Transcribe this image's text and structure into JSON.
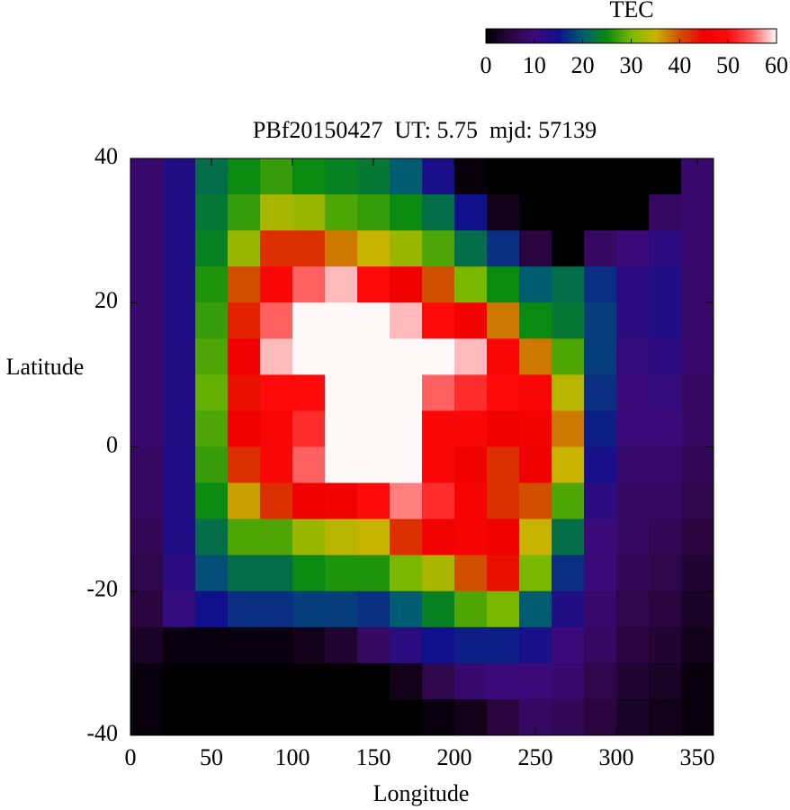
{
  "chart_data": {
    "type": "heatmap",
    "title": "PBf20150427  UT: 5.75  mjd: 57139",
    "xlabel": "Longitude",
    "ylabel": "Latitude",
    "xlim": [
      0,
      360
    ],
    "ylim": [
      -40,
      40
    ],
    "xticks": [
      0,
      50,
      100,
      150,
      200,
      250,
      300,
      350
    ],
    "yticks": [
      -40,
      -20,
      0,
      20,
      40
    ],
    "x": [
      10,
      30,
      50,
      70,
      90,
      110,
      130,
      150,
      170,
      190,
      210,
      230,
      250,
      270,
      290,
      310,
      330,
      350
    ],
    "y": [
      37.5,
      32.5,
      27.5,
      22.5,
      17.5,
      12.5,
      7.5,
      2.5,
      -2.5,
      -7.5,
      -12.5,
      -17.5,
      -22.5,
      -27.5,
      -32.5,
      -37.5
    ],
    "z": [
      [
        9,
        9,
        9,
        9,
        9,
        9,
        9,
        9,
        8,
        8,
        7,
        6,
        5,
        3,
        1,
        1
      ],
      [
        13,
        13,
        13,
        13,
        13,
        13,
        13,
        13,
        13,
        13,
        13,
        12,
        11,
        1,
        0,
        0
      ],
      [
        22,
        23,
        24,
        26,
        27,
        28,
        29,
        28,
        27,
        25,
        22,
        19,
        15,
        1,
        0,
        0
      ],
      [
        25,
        27,
        32,
        40,
        43,
        45,
        44,
        45,
        42,
        36,
        28,
        22,
        17,
        1,
        0,
        0
      ],
      [
        27,
        33,
        42,
        48,
        55,
        58,
        50,
        48,
        48,
        42,
        28,
        22,
        17,
        1,
        0,
        0
      ],
      [
        25,
        32,
        42,
        55,
        60,
        60,
        50,
        52,
        55,
        45,
        32,
        25,
        18,
        2,
        0,
        0
      ],
      [
        24,
        28,
        38,
        58,
        60,
        60,
        60,
        60,
        60,
        46,
        34,
        26,
        18,
        4,
        0,
        0
      ],
      [
        23,
        27,
        35,
        50,
        60,
        60,
        60,
        60,
        60,
        50,
        35,
        26,
        17,
        8,
        0,
        0
      ],
      [
        20,
        25,
        32,
        45,
        58,
        60,
        60,
        60,
        60,
        56,
        42,
        30,
        20,
        12,
        2,
        0
      ],
      [
        14,
        22,
        28,
        40,
        50,
        60,
        55,
        48,
        48,
        52,
        46,
        33,
        24,
        15,
        6,
        1
      ],
      [
        1,
        15,
        22,
        30,
        46,
        58,
        52,
        48,
        45,
        47,
        47,
        40,
        28,
        16,
        9,
        2
      ],
      [
        0,
        2,
        17,
        25,
        38,
        48,
        50,
        45,
        42,
        42,
        45,
        44,
        30,
        16,
        10,
        5
      ],
      [
        0,
        0,
        5,
        20,
        25,
        38,
        48,
        46,
        45,
        40,
        35,
        30,
        20,
        14,
        10,
        8
      ],
      [
        0,
        0,
        0,
        22,
        23,
        28,
        34,
        38,
        35,
        28,
        22,
        17,
        13,
        10,
        9,
        7
      ],
      [
        0,
        0,
        8,
        17,
        18,
        18,
        17,
        16,
        14,
        12,
        10,
        10,
        9,
        8,
        6,
        5
      ],
      [
        0,
        0,
        10,
        12,
        12,
        11,
        10,
        10,
        9,
        8,
        8,
        7,
        6,
        5,
        4,
        3
      ],
      [
        0,
        8,
        12,
        13,
        13,
        12,
        11,
        10,
        9,
        8,
        7,
        6,
        5,
        4,
        3,
        2
      ],
      [
        9,
        9,
        9,
        9,
        9,
        9,
        8,
        8,
        7,
        6,
        5,
        4,
        3,
        2,
        1,
        1
      ]
    ],
    "colorbar": {
      "title": "TEC",
      "lim": [
        0,
        60
      ],
      "ticks": [
        0,
        10,
        20,
        30,
        40,
        50,
        60
      ],
      "colors": [
        "#000000",
        "#2a0540",
        "#3c0a78",
        "#10108c",
        "#005c70",
        "#0a8a10",
        "#7ab800",
        "#c8b400",
        "#d05000",
        "#f00000",
        "#ff0a0a",
        "#ff6060",
        "#fff8f8"
      ]
    }
  }
}
